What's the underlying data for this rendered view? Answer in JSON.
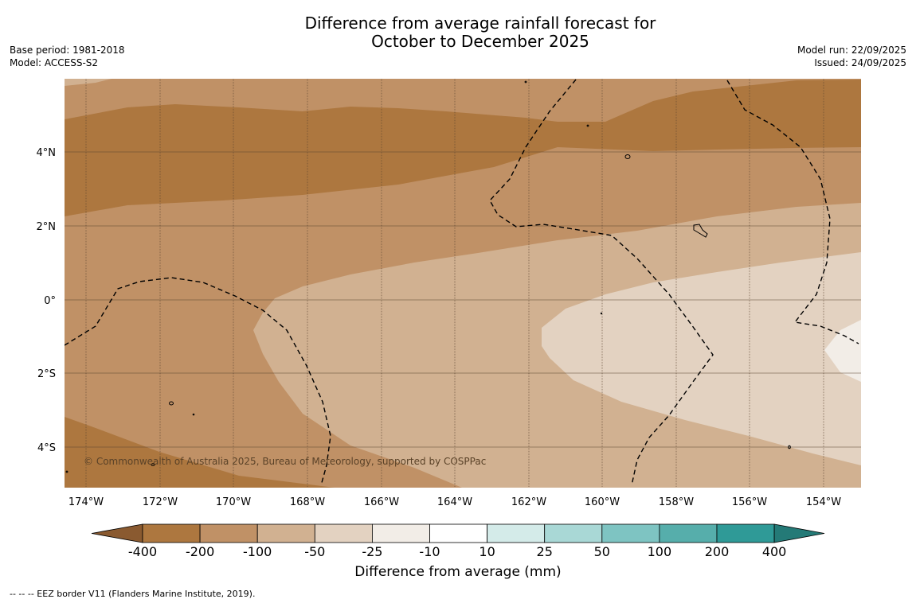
{
  "title": {
    "line1": "Difference from average rainfall forecast for",
    "line2": "October to December 2025"
  },
  "meta_left": {
    "base_period": "Base period: 1981-2018",
    "model": "Model: ACCESS-S2"
  },
  "meta_right": {
    "model_run": "Model run: 22/09/2025",
    "issued": "Issued: 24/09/2025"
  },
  "map": {
    "lon_labels": [
      "174°W",
      "172°W",
      "170°W",
      "168°W",
      "166°W",
      "164°W",
      "162°W",
      "160°W",
      "158°W",
      "156°W",
      "154°W"
    ],
    "lat_labels": [
      "4°N",
      "2°N",
      "0°",
      "2°S",
      "4°S"
    ],
    "copyright": "© Commonwealth of Australia 2025, Bureau of Meteorology, supported by COSPPac",
    "category_colors": {
      "minus_200_to_minus_100": "#ad773f",
      "minus_100_to_minus_50": "#c09166",
      "minus_50_to_minus_25": "#d1b191",
      "minus_25_to_minus_10": "#e3d2c1",
      "minus_10_to_10": "#f2ede7"
    }
  },
  "colorbar": {
    "ticks": [
      "-400",
      "-200",
      "-100",
      "-50",
      "-25",
      "-10",
      "10",
      "25",
      "50",
      "100",
      "200",
      "400"
    ],
    "colors": [
      "#8a5a30",
      "#ad773f",
      "#c09166",
      "#d1b191",
      "#e3d2c1",
      "#f2ede7",
      "#ffffff",
      "#d4ebe9",
      "#a9d8d6",
      "#7ec4c2",
      "#56aeab",
      "#2f9a97",
      "#247a77"
    ],
    "label": "Difference from average (mm)"
  },
  "footer": {
    "legend": "--  --  -- EEZ border V11 (Flanders Marine Institute, 2019)."
  }
}
